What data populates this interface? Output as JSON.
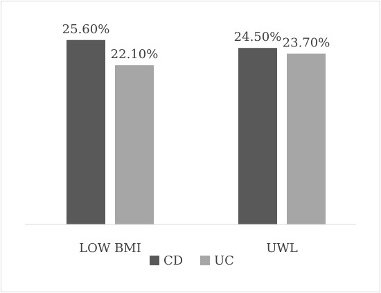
{
  "chart_data": {
    "type": "bar",
    "categories": [
      "LOW BMI",
      "UWL"
    ],
    "series": [
      {
        "name": "CD",
        "values": [
          25.6,
          24.5
        ],
        "labels": [
          "25.60%",
          "24.50%"
        ],
        "color": "#595959"
      },
      {
        "name": "UC",
        "values": [
          22.1,
          23.7
        ],
        "labels": [
          "22.10%",
          "23.70%"
        ],
        "color": "#a6a6a6"
      }
    ],
    "ylim": [
      0,
      30
    ],
    "grid": false,
    "legend": "bottom",
    "axis_color": "#d9d9d9"
  }
}
